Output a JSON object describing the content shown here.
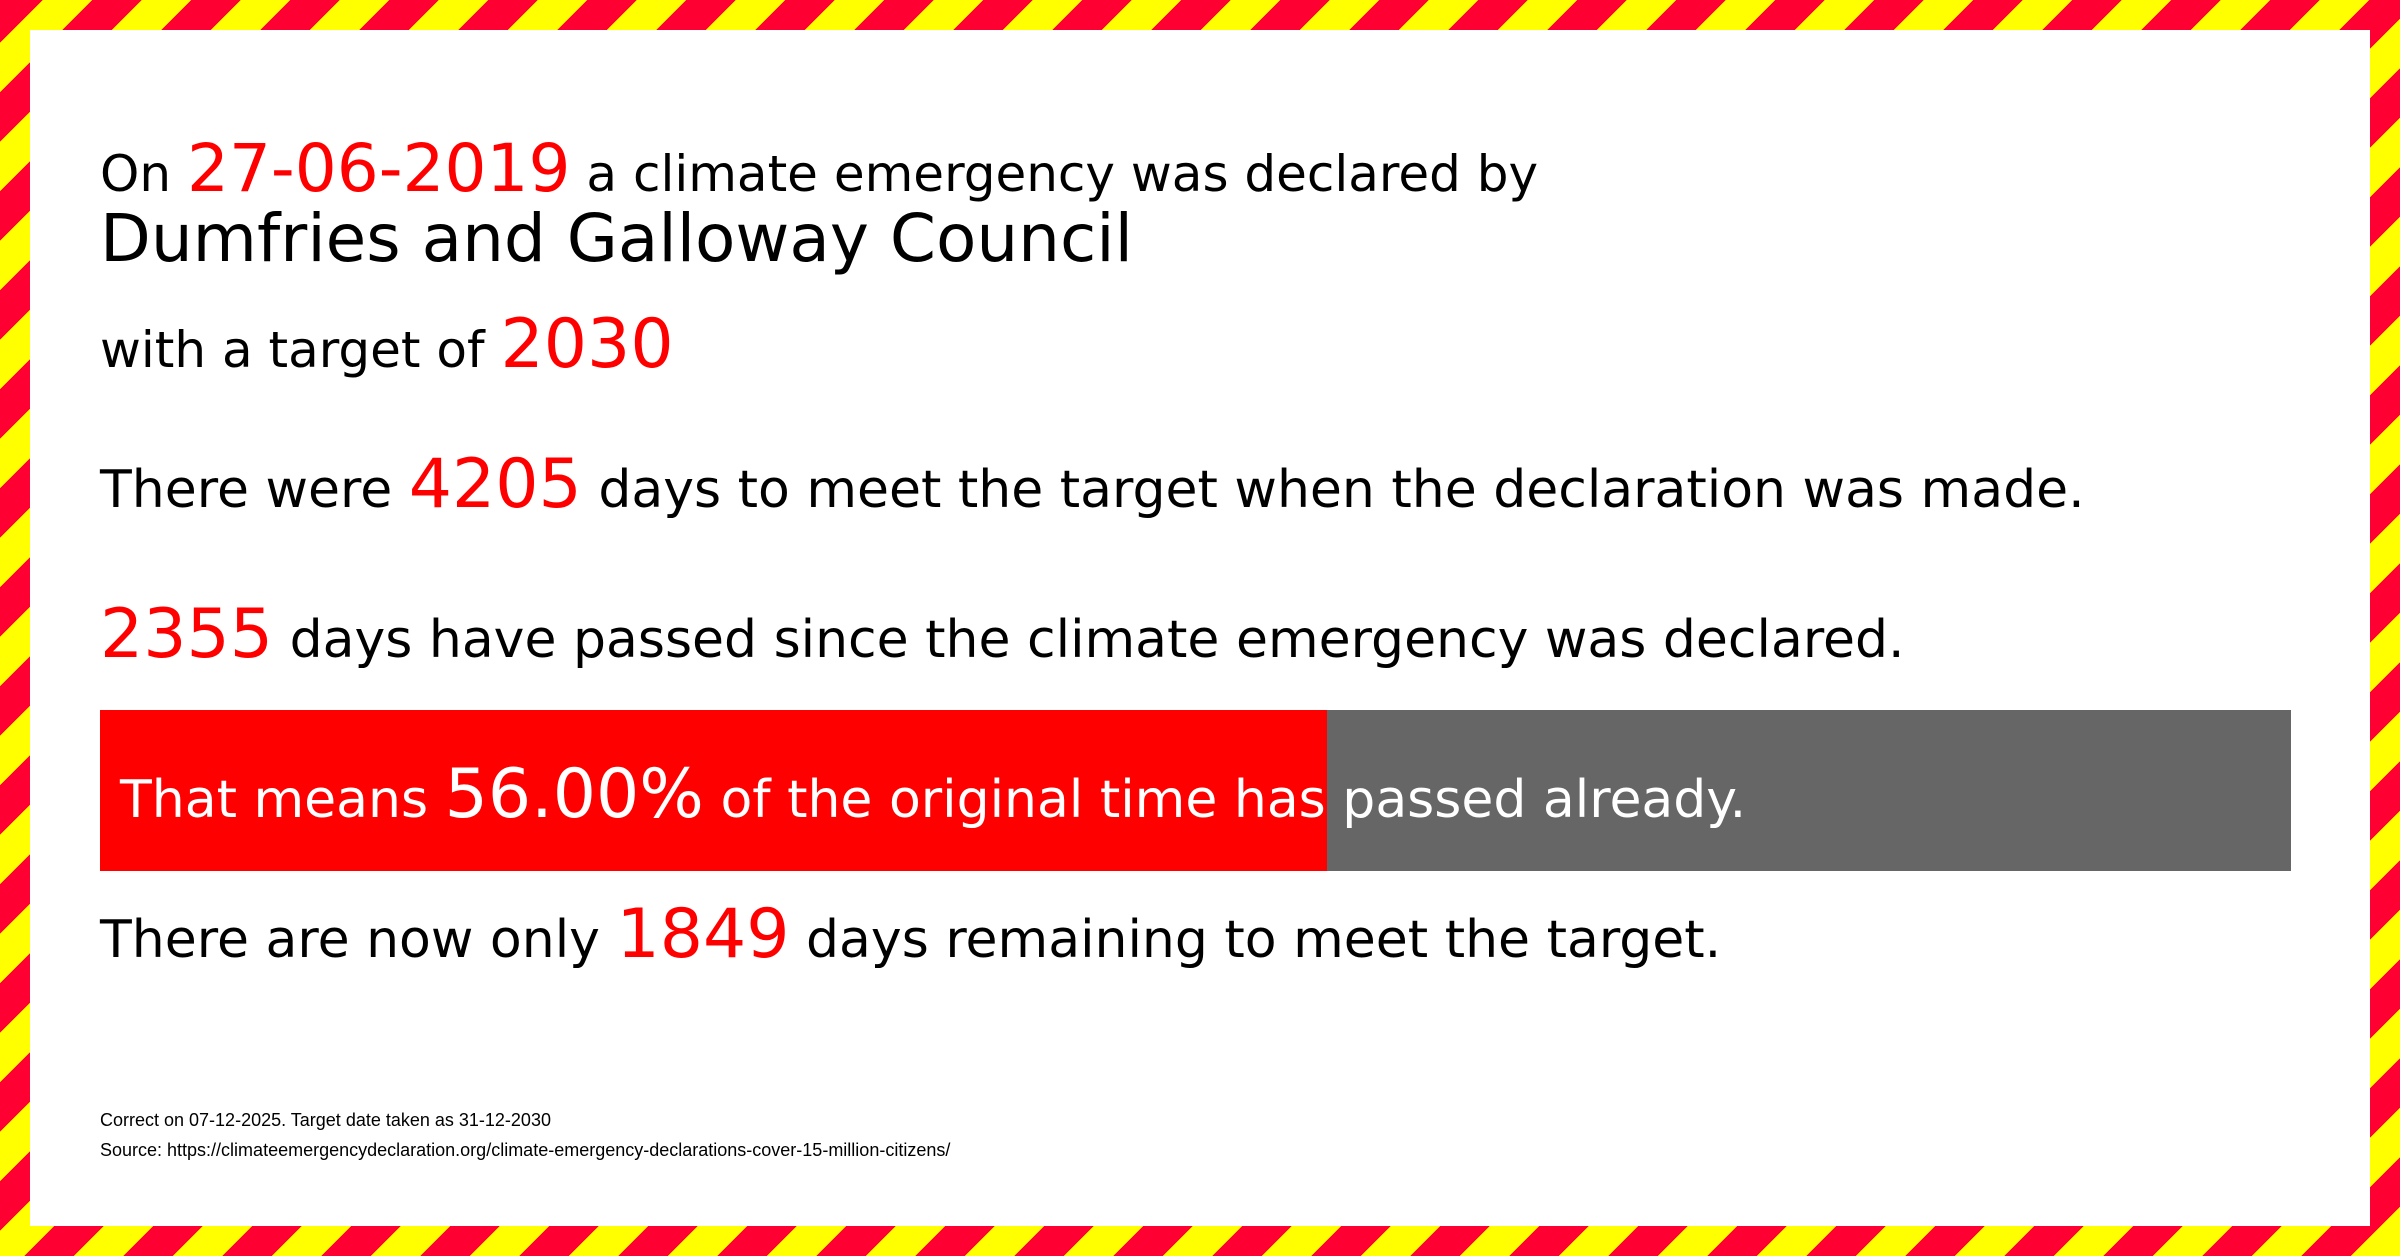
{
  "colors": {
    "accent": "#ff0000",
    "bar_remaining": "#666666",
    "stripe_red": "#ff0033",
    "stripe_yellow": "#ffff00"
  },
  "line1": {
    "prefix": "On",
    "date": "27-06-2019",
    "suffix": "a climate emergency was declared by"
  },
  "council": "Dumfries and Galloway Council",
  "target": {
    "prefix": "with a target of",
    "year": "2030"
  },
  "total": {
    "prefix": "There were",
    "days": "4205",
    "suffix": "days to meet the target when the declaration was made."
  },
  "passed": {
    "days": "2355",
    "suffix": "days have passed since the climate emergency was declared."
  },
  "progress": {
    "prefix": "That means",
    "percent_text": "56.00%",
    "suffix": "of the original time has passed already.",
    "percent": 56.0
  },
  "remaining": {
    "prefix": "There are now only",
    "days": "1849",
    "suffix": "days remaining to meet the target."
  },
  "footer": {
    "correct": "Correct on 07-12-2025. Target date taken as 31-12-2030",
    "source": "Source: https://climateemergencydeclaration.org/climate-emergency-declarations-cover-15-million-citizens/"
  }
}
